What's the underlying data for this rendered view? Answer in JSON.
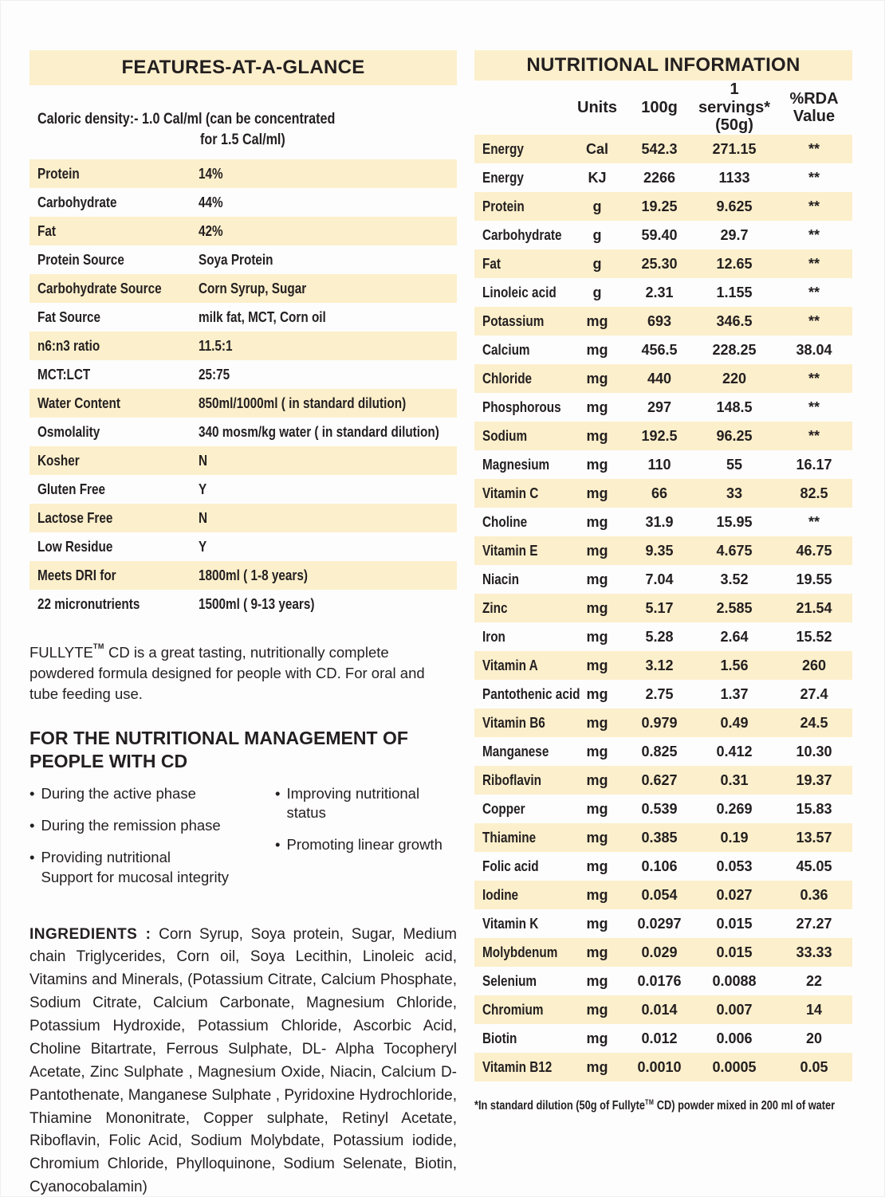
{
  "colors": {
    "cream": "#fcefcb",
    "text": "#231f20",
    "page_bg": "#fdfdfd"
  },
  "left": {
    "title": "FEATURES-AT-A-GLANCE",
    "caloric_line1": "Caloric density:- 1.0 Cal/ml (can be concentrated",
    "caloric_line2": "for 1.5 Cal/ml)",
    "bullet_icon": "•",
    "features": [
      {
        "label": "Protein",
        "value": "14%"
      },
      {
        "label": "Carbohydrate",
        "value": "44%"
      },
      {
        "label": "Fat",
        "value": "42%"
      },
      {
        "label": "Protein Source",
        "value": "Soya Protein"
      },
      {
        "label": "Carbohydrate Source",
        "value": "Corn Syrup, Sugar"
      },
      {
        "label": "Fat Source",
        "value": "milk fat, MCT, Corn oil"
      },
      {
        "label": "n6:n3 ratio",
        "value": "11.5:1"
      },
      {
        "label": "MCT:LCT",
        "value": "25:75"
      },
      {
        "label": "Water Content",
        "value": "850ml/1000ml ( in standard dilution)"
      },
      {
        "label": "Osmolality",
        "value": "340 mosm/kg water ( in standard dilution)"
      },
      {
        "label": "Kosher",
        "value": "N"
      },
      {
        "label": "Gluten Free",
        "value": "Y"
      },
      {
        "label": "Lactose Free",
        "value": "N"
      },
      {
        "label": "Low Residue",
        "value": "Y"
      },
      {
        "label": "Meets DRI for",
        "value": "1800ml ( 1-8 years)"
      },
      {
        "label": "22 micronutrients",
        "value": "1500ml ( 9-13 years)"
      }
    ],
    "description": {
      "brand": "FULLYTE",
      "tm": "TM",
      "text": " CD is a great tasting, nutritionally complete powdered formula designed for people with CD. For oral and tube feeding use."
    },
    "management_heading": "FOR THE  NUTRITIONAL MANAGEMENT OF\nPEOPLE WITH CD",
    "bullets_left": [
      "During the active phase",
      "During the remission phase",
      "Providing nutritional\nSupport for mucosal integrity"
    ],
    "bullets_right": [
      "Improving nutritional status",
      "Promoting linear growth"
    ],
    "ingredients_label": "INGREDIENTS :",
    "ingredients_text": " Corn Syrup, Soya protein, Sugar, Medium chain Triglycerides, Corn oil, Soya Lecithin, Linoleic acid, Vitamins and Minerals, (Potassium Citrate, Calcium Phosphate, Sodium Citrate, Calcium Carbonate, Magnesium  Chloride, Potassium Hydroxide, Potassium Chloride, Ascorbic Acid, Choline Bitartrate, Ferrous Sulphate, DL- Alpha Tocopheryl Acetate, Zinc Sulphate , Magnesium Oxide, Niacin, Calcium D-Pantothenate, Manganese Sulphate , Pyridoxine Hydrochloride, Thiamine Mononitrate, Copper sulphate, Retinyl Acetate, Riboflavin, Folic Acid, Sodium Molybdate, Potassium iodide, Chromium Chloride, Phylloquinone, Sodium Selenate, Biotin, Cyanocobalamin)"
  },
  "nutrition": {
    "title": "NUTRITIONAL INFORMATION",
    "headers": {
      "units": "Units",
      "per100g": "100g",
      "serving_line1": "1 servings*",
      "serving_line2": "(50g)",
      "rda_line1": "%RDA",
      "rda_line2": "Value"
    },
    "rows": [
      [
        "Energy",
        "Cal",
        "542.3",
        "271.15",
        "**"
      ],
      [
        "Energy",
        "KJ",
        "2266",
        "1133",
        "**"
      ],
      [
        "Protein",
        "g",
        "19.25",
        "9.625",
        "**"
      ],
      [
        "Carbohydrate",
        "g",
        "59.40",
        "29.7",
        "**"
      ],
      [
        "Fat",
        "g",
        "25.30",
        "12.65",
        "**"
      ],
      [
        "Linoleic acid",
        "g",
        "2.31",
        "1.155",
        "**"
      ],
      [
        "Potassium",
        "mg",
        "693",
        "346.5",
        "**"
      ],
      [
        "Calcium",
        "mg",
        "456.5",
        "228.25",
        "38.04"
      ],
      [
        "Chloride",
        "mg",
        "440",
        "220",
        "**"
      ],
      [
        "Phosphorous",
        "mg",
        "297",
        "148.5",
        "**"
      ],
      [
        "Sodium",
        "mg",
        "192.5",
        "96.25",
        "**"
      ],
      [
        "Magnesium",
        "mg",
        "110",
        "55",
        "16.17"
      ],
      [
        "Vitamin C",
        "mg",
        "66",
        "33",
        "82.5"
      ],
      [
        "Choline",
        "mg",
        "31.9",
        "15.95",
        "**"
      ],
      [
        "Vitamin E",
        "mg",
        "9.35",
        "4.675",
        "46.75"
      ],
      [
        "Niacin",
        "mg",
        "7.04",
        "3.52",
        "19.55"
      ],
      [
        "Zinc",
        "mg",
        "5.17",
        "2.585",
        "21.54"
      ],
      [
        "Iron",
        "mg",
        "5.28",
        "2.64",
        "15.52"
      ],
      [
        "Vitamin A",
        "mg",
        "3.12",
        "1.56",
        "260"
      ],
      [
        "Pantothenic acid",
        "mg",
        "2.75",
        "1.37",
        "27.4"
      ],
      [
        "Vitamin B6",
        "mg",
        "0.979",
        "0.49",
        "24.5"
      ],
      [
        "Manganese",
        "mg",
        "0.825",
        "0.412",
        "10.30"
      ],
      [
        "Riboflavin",
        "mg",
        "0.627",
        "0.31",
        "19.37"
      ],
      [
        "Copper",
        "mg",
        "0.539",
        "0.269",
        "15.83"
      ],
      [
        "Thiamine",
        "mg",
        "0.385",
        "0.19",
        "13.57"
      ],
      [
        "Folic acid",
        "mg",
        "0.106",
        "0.053",
        "45.05"
      ],
      [
        "Iodine",
        "mg",
        "0.054",
        "0.027",
        "0.36"
      ],
      [
        "Vitamin K",
        "mg",
        "0.0297",
        "0.015",
        "27.27"
      ],
      [
        "Molybdenum",
        "mg",
        "0.029",
        "0.015",
        "33.33"
      ],
      [
        "Selenium",
        "mg",
        "0.0176",
        "0.0088",
        "22"
      ],
      [
        "Chromium",
        "mg",
        "0.014",
        "0.007",
        "14"
      ],
      [
        "Biotin",
        "mg",
        "0.012",
        "0.006",
        "20"
      ],
      [
        "Vitamin B12",
        "mg",
        "0.0010",
        "0.0005",
        "0.05"
      ]
    ],
    "footnote": {
      "pre": "*In standard dilution (50g of Fullyte",
      "tm": "TM",
      "post": " CD) powder mixed in 200 ml of water"
    }
  }
}
